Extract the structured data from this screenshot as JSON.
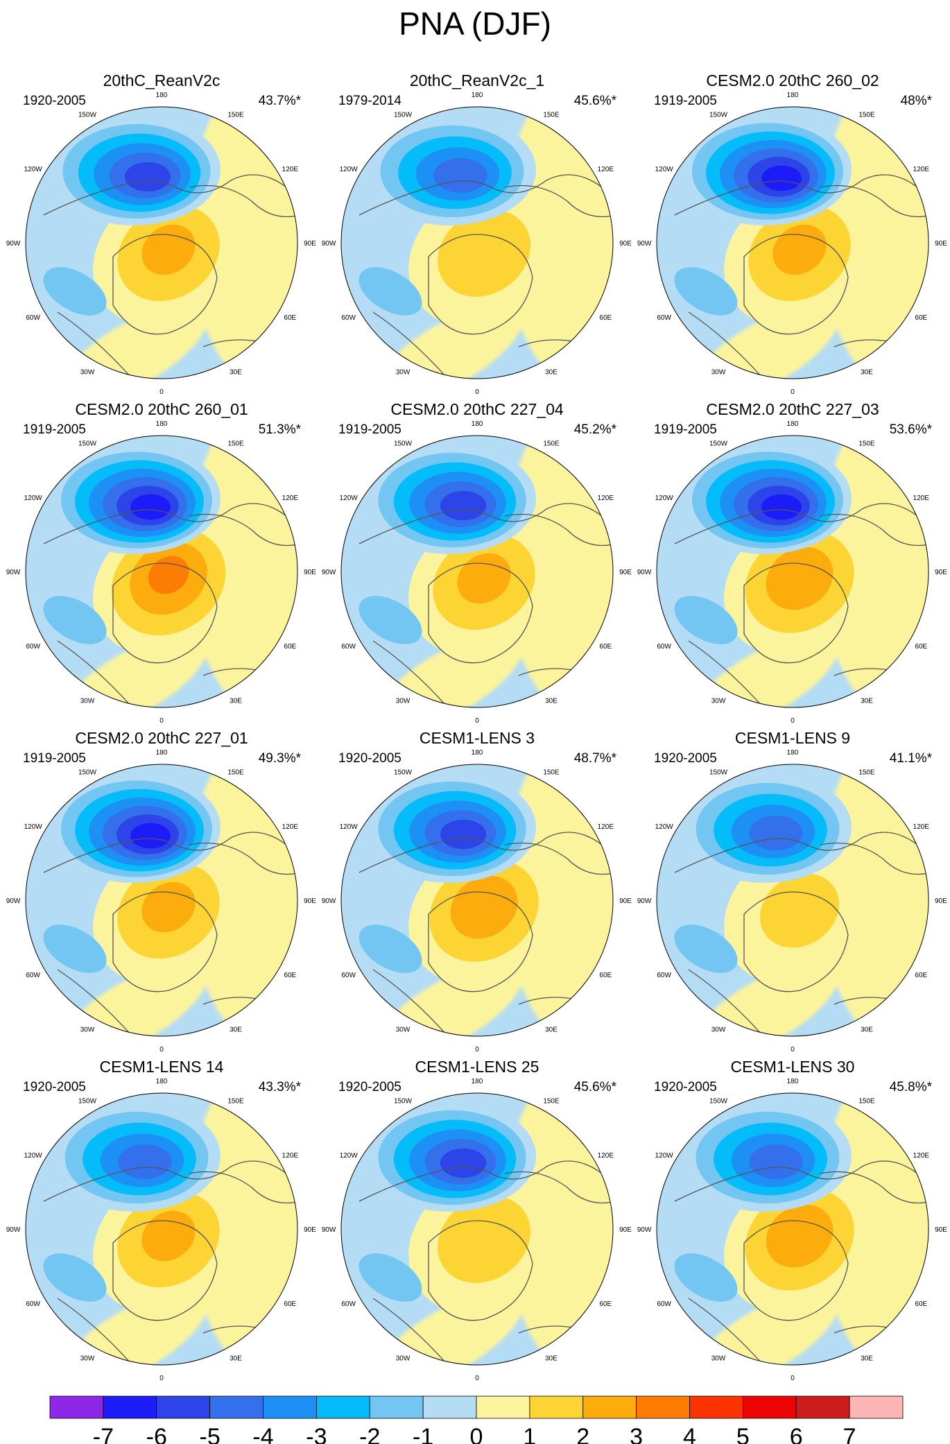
{
  "title": "PNA (DJF)",
  "panels": [
    {
      "name": "20thC_ReanV2c",
      "years": "1920-2005",
      "pct": "43.7%*"
    },
    {
      "name": "20thC_ReanV2c_1",
      "years": "1979-2014",
      "pct": "45.6%*"
    },
    {
      "name": "CESM2.0 20thC 260_02",
      "years": "1919-2005",
      "pct": "48%*"
    },
    {
      "name": "CESM2.0 20thC 260_01",
      "years": "1919-2005",
      "pct": "51.3%*"
    },
    {
      "name": "CESM2.0 20thC 227_04",
      "years": "1919-2005",
      "pct": "45.2%*"
    },
    {
      "name": "CESM2.0 20thC 227_03",
      "years": "1919-2005",
      "pct": "53.6%*"
    },
    {
      "name": "CESM2.0 20thC 227_01",
      "years": "1919-2005",
      "pct": "49.3%*"
    },
    {
      "name": "CESM1-LENS 3",
      "years": "1920-2005",
      "pct": "48.7%*"
    },
    {
      "name": "CESM1-LENS 9",
      "years": "1920-2005",
      "pct": "41.1%*"
    },
    {
      "name": "CESM1-LENS 14",
      "years": "1920-2005",
      "pct": "43.3%*"
    },
    {
      "name": "CESM1-LENS 25",
      "years": "1920-2005",
      "pct": "45.6%*"
    },
    {
      "name": "CESM1-LENS 30",
      "years": "1920-2005",
      "pct": "45.8%*"
    }
  ],
  "longitude_labels": [
    "180",
    "150E",
    "120E",
    "90E",
    "60E",
    "30E",
    "0",
    "30W",
    "60W",
    "90W",
    "120W",
    "150W"
  ],
  "colorbar": {
    "colors": [
      "#8e28e8",
      "#1c1cf8",
      "#2c44e8",
      "#3470ec",
      "#1c90f4",
      "#04bcfa",
      "#74c6f2",
      "#b4dcf4",
      "#fcf49c",
      "#fcd434",
      "#fcac0c",
      "#fc7c04",
      "#fc3404",
      "#ec0404",
      "#cc1c1c",
      "#fcb4b4"
    ],
    "labels": [
      "-7",
      "-6",
      "-5",
      "-4",
      "-3",
      "-2",
      "-1",
      "0",
      "1",
      "2",
      "3",
      "4",
      "5",
      "6",
      "7"
    ]
  },
  "anomaly_fields": [
    {
      "low": -6.0,
      "high": 2.5
    },
    {
      "low": -5.0,
      "high": 2.0
    },
    {
      "low": -6.5,
      "high": 2.5
    },
    {
      "low": -6.5,
      "high": 3.5
    },
    {
      "low": -6.0,
      "high": 2.5
    },
    {
      "low": -6.5,
      "high": 3.0
    },
    {
      "low": -6.5,
      "high": 2.5
    },
    {
      "low": -5.5,
      "high": 3.0
    },
    {
      "low": -5.0,
      "high": 1.5
    },
    {
      "low": -5.0,
      "high": 2.5
    },
    {
      "low": -5.5,
      "high": 2.0
    },
    {
      "low": -5.0,
      "high": 3.0
    }
  ]
}
